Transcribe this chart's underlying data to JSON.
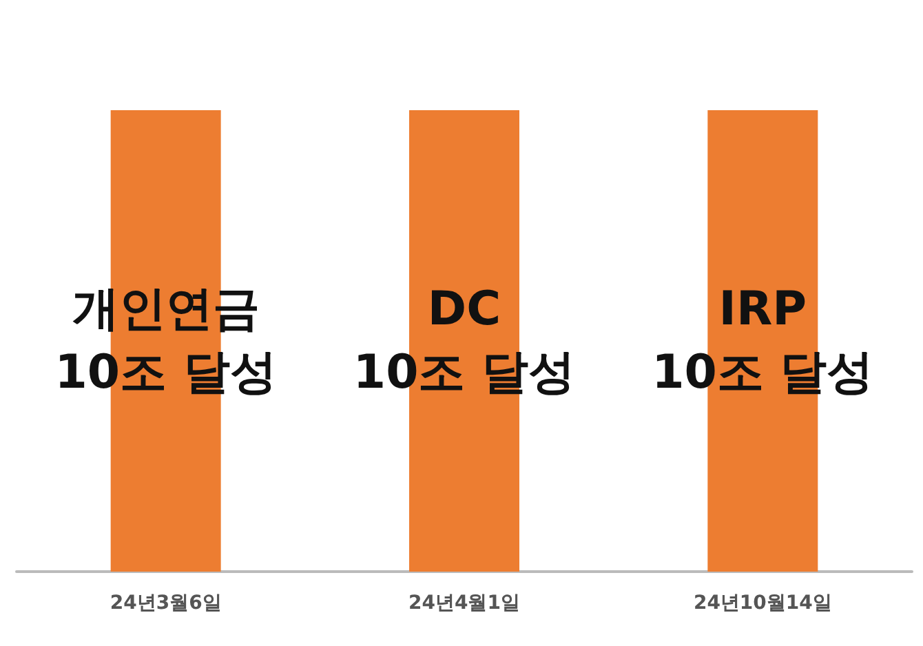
{
  "chart_data": {
    "type": "bar",
    "categories": [
      "24년3월6일",
      "24년4월1일",
      "24년10월14일"
    ],
    "values": [
      10,
      10,
      10
    ],
    "color": "#ed7d31",
    "value_labels": [
      "개인연금\n10조 달성",
      "DC\n10조 달성",
      "IRP\n10조 달성"
    ],
    "tick_labels": "x"
  }
}
